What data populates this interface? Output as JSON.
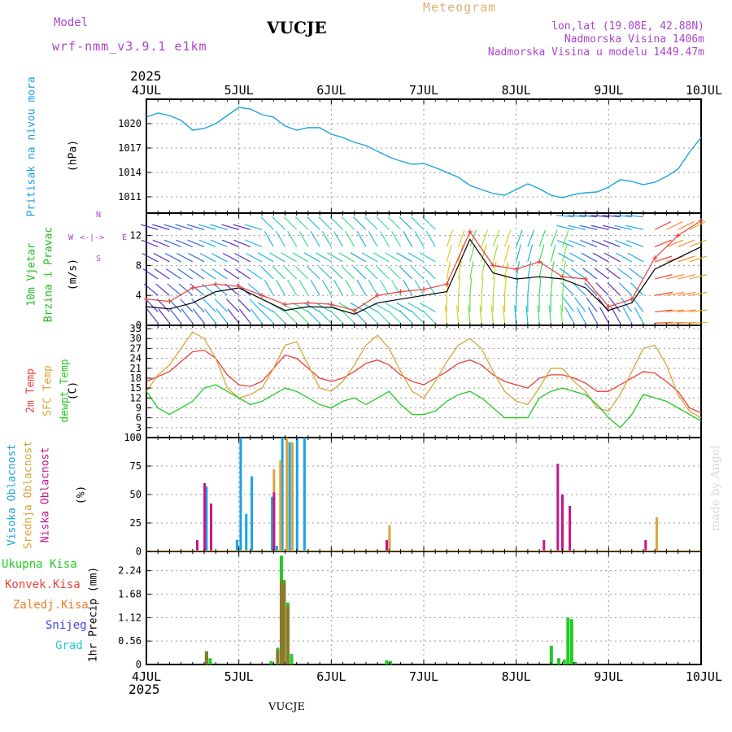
{
  "header": {
    "model_label": "Model",
    "model_name": "wrf-nmm_v3.9.1 e1km",
    "station": "VUCJE",
    "meteogram": "Meteogram",
    "coords": "lon,lat (19.08E, 42.88N)",
    "alt": "Nadmorska Visina 1406m",
    "alt_model": "Nadmorska Visina u modelu 1449.47m",
    "year_top": "2025",
    "year_bottom": "2025",
    "footer": "VUCJE",
    "watermark": "made by Angel"
  },
  "labels": {
    "pressure_title": "Pritisak na nivou mora",
    "pressure_unit": "(hPa)",
    "wind_title1": "10m Vjetar",
    "wind_title2": "Brzina i Pravac",
    "wind_unit": "(m/s)",
    "compass_n": "N",
    "compass_s": "S",
    "compass_w": "W",
    "compass_e": "E",
    "compass_arrows": "<-|->",
    "temp_2m": "2m Temp",
    "temp_sfc": "SFC Temp",
    "temp_dew": "dewpt Temp",
    "temp_unit": "(C)",
    "cloud_high": "Visoka Oblacnost",
    "cloud_mid": "Srednja Oblacnost",
    "cloud_low": "Niska Oblacnost",
    "cloud_unit": "(%)",
    "precip_total": "Ukupna Kisa",
    "precip_conv": "Konvek.Kisa",
    "precip_frozen": "Zaledj.Kisa",
    "precip_snow": "Snijeg",
    "precip_graupel": "Grad",
    "precip_axis": "1hr Precip (mm)"
  },
  "colors": {
    "pressure": "#1aa3e0",
    "wind_label": "#22bb22",
    "compass": "#aa44cc",
    "temp_2m": "#e8413a",
    "temp_sfc": "#d9a53a",
    "temp_dew": "#22cc22",
    "cloud_high": "#1aa3e0",
    "cloud_mid": "#d9a53a",
    "cloud_low": "#c8148c",
    "precip_total": "#22cc22",
    "precip_conv": "#e8413a",
    "precip_frozen": "#f07c2a",
    "precip_snow": "#4444dd",
    "precip_graupel": "#22cccc",
    "model": "#aa44cc",
    "meteogram": "#e0b070",
    "coords": "#aa44cc"
  },
  "chart_data": [
    {
      "type": "line",
      "panel": "pressure",
      "x_ticks": [
        "4JUL",
        "5JUL",
        "6JUL",
        "7JUL",
        "8JUL",
        "9JUL",
        "10JUL"
      ],
      "ylim": [
        1009,
        1023
      ],
      "yticks": [
        "1011",
        "1014",
        "1017",
        "1020"
      ],
      "x": [
        0,
        0.125,
        0.25,
        0.375,
        0.5,
        0.625,
        0.75,
        0.875,
        1,
        1.125,
        1.25,
        1.375,
        1.5,
        1.625,
        1.75,
        1.875,
        2,
        2.125,
        2.25,
        2.375,
        2.5,
        2.625,
        2.75,
        2.875,
        3,
        3.125,
        3.25,
        3.375,
        3.5,
        3.625,
        3.75,
        3.875,
        4,
        4.125,
        4.25,
        4.375,
        4.5,
        4.625,
        4.75,
        4.875,
        5,
        5.125,
        5.25,
        5.375,
        5.5,
        5.625,
        5.75,
        5.875,
        6
      ],
      "series": [
        {
          "values": [
            1020.8,
            1021.3,
            1021.0,
            1020.4,
            1019.2,
            1019.4,
            1020.0,
            1021.0,
            1022.0,
            1021.8,
            1021.1,
            1020.8,
            1019.7,
            1019.2,
            1019.5,
            1019.5,
            1018.7,
            1018.3,
            1017.7,
            1017.3,
            1016.6,
            1015.9,
            1015.4,
            1015.0,
            1015.1,
            1014.6,
            1014.0,
            1013.4,
            1012.4,
            1011.9,
            1011.4,
            1011.2,
            1011.9,
            1012.6,
            1012.0,
            1011.2,
            1010.9,
            1011.3,
            1011.5,
            1011.6,
            1012.2,
            1013.1,
            1012.9,
            1012.5,
            1012.8,
            1013.5,
            1014.4,
            1016.5,
            1018.3
          ]
        }
      ]
    },
    {
      "type": "line",
      "panel": "wind",
      "ylim": [
        0,
        15
      ],
      "yticks": [
        "0",
        "4",
        "8",
        "12"
      ],
      "x": [
        0,
        0.25,
        0.5,
        0.75,
        1,
        1.25,
        1.5,
        1.75,
        2,
        2.25,
        2.5,
        2.75,
        3,
        3.25,
        3.5,
        3.75,
        4,
        4.25,
        4.5,
        4.75,
        5,
        5.25,
        5.5,
        5.75,
        6
      ],
      "series": [
        {
          "values": [
            2.5,
            2.2,
            3.0,
            4.5,
            5.0,
            3.5,
            2.0,
            2.5,
            2.4,
            1.5,
            3.0,
            3.5,
            4.0,
            4.5,
            11.5,
            7.0,
            6.2,
            6.5,
            6.2,
            5.0,
            2.0,
            3.0,
            7.5,
            9.0,
            10.5
          ]
        },
        {
          "values": [
            3.5,
            3.2,
            5.0,
            5.5,
            5.2,
            4.0,
            2.8,
            3.0,
            2.8,
            2.0,
            4.0,
            4.5,
            4.8,
            5.5,
            12.5,
            8.0,
            7.5,
            8.5,
            6.5,
            6.2,
            2.5,
            3.5,
            9.0,
            12.0,
            14.0
          ]
        }
      ]
    },
    {
      "type": "line",
      "panel": "temperature",
      "ylim": [
        0,
        34
      ],
      "yticks": [
        "0",
        "3",
        "6",
        "9",
        "12",
        "15",
        "18",
        "21",
        "24",
        "27",
        "30",
        "33"
      ],
      "x": [
        0,
        0.125,
        0.25,
        0.375,
        0.5,
        0.625,
        0.75,
        0.875,
        1,
        1.125,
        1.25,
        1.375,
        1.5,
        1.625,
        1.75,
        1.875,
        2,
        2.125,
        2.25,
        2.375,
        2.5,
        2.625,
        2.75,
        2.875,
        3,
        3.125,
        3.25,
        3.375,
        3.5,
        3.625,
        3.75,
        3.875,
        4,
        4.125,
        4.25,
        4.375,
        4.5,
        4.625,
        4.75,
        4.875,
        5,
        5.125,
        5.25,
        5.375,
        5.5,
        5.625,
        5.75,
        5.875,
        6
      ],
      "series": [
        {
          "name": "2m Temp",
          "values": [
            17,
            18.5,
            20,
            23,
            26,
            26.5,
            24,
            19,
            16,
            15.5,
            17,
            21,
            25,
            24,
            21,
            18,
            17,
            18,
            20,
            22.5,
            23.5,
            22,
            19,
            17,
            16,
            18,
            20,
            22.5,
            23.5,
            22,
            19,
            17,
            16,
            15,
            18,
            19,
            19,
            18,
            16.5,
            14,
            14,
            16,
            18,
            20,
            19.5,
            17,
            14,
            9,
            7.5
          ]
        },
        {
          "name": "SFC Temp",
          "values": [
            14,
            19,
            22,
            27,
            32,
            30,
            24,
            15,
            12,
            13,
            15,
            21,
            28,
            29,
            22,
            15,
            14,
            17,
            22,
            28,
            31,
            27,
            20,
            14,
            12,
            17,
            23,
            28,
            30,
            27,
            20,
            14,
            11,
            10,
            15,
            21,
            21,
            17,
            14,
            9,
            8,
            13,
            20,
            27,
            28,
            22,
            13,
            8,
            6
          ]
        },
        {
          "name": "dewpt Temp",
          "values": [
            14,
            9,
            7,
            9,
            11,
            15,
            16,
            14,
            12,
            10,
            11,
            13,
            15,
            14,
            12,
            10,
            9,
            11,
            12,
            10,
            12,
            14,
            10,
            7,
            7,
            8,
            11,
            13,
            14,
            12,
            9,
            6,
            6,
            6,
            12,
            14,
            15,
            14,
            13,
            10,
            6,
            3,
            7,
            13,
            12,
            11,
            9,
            7,
            5
          ]
        }
      ]
    },
    {
      "type": "bar",
      "panel": "clouds",
      "ylim": [
        0,
        100
      ],
      "yticks": [
        "0",
        "25",
        "50",
        "75",
        "100"
      ],
      "series": [
        {
          "name": "Visoka Oblacnost",
          "x": [
            0.65,
            0.98,
            1.02,
            1.08,
            1.14,
            1.36,
            1.41,
            1.47,
            1.55,
            1.63,
            1.71,
            2.6
          ],
          "values": [
            57,
            10,
            100,
            33,
            66,
            48,
            5,
            100,
            96,
            100,
            100,
            10
          ]
        },
        {
          "name": "Srednja Oblacnost",
          "x": [
            1.38,
            1.45,
            1.52,
            1.58,
            2.63,
            5.52
          ],
          "values": [
            72,
            80,
            100,
            96,
            23,
            30
          ]
        },
        {
          "name": "Niska Oblacnost",
          "x": [
            0.55,
            0.63,
            0.7,
            1.38,
            2.6,
            4.3,
            4.45,
            4.5,
            4.58,
            5.4
          ],
          "values": [
            10,
            60,
            42,
            52,
            10,
            10,
            77,
            50,
            40,
            10
          ]
        }
      ]
    },
    {
      "type": "bar",
      "panel": "precipitation",
      "ylim": [
        0,
        2.7
      ],
      "yticks": [
        "0",
        "0.56",
        "1.12",
        "1.68",
        "2.24"
      ],
      "series": [
        {
          "name": "Ukupna Kisa",
          "x": [
            0.65,
            0.69,
            1.35,
            1.42,
            1.46,
            1.49,
            1.53,
            1.57,
            2.6,
            2.64,
            4.38,
            4.46,
            4.52,
            4.56,
            4.6,
            4.64
          ],
          "values": [
            0.32,
            0.15,
            0.08,
            0.4,
            2.6,
            2.02,
            1.48,
            0.25,
            0.1,
            0.08,
            0.45,
            0.15,
            0.12,
            1.12,
            1.08,
            0.06
          ]
        },
        {
          "name": "Konvek.Kisa",
          "x": [
            0.65,
            1.42,
            1.46,
            1.49,
            1.53
          ],
          "values": [
            0.3,
            0.35,
            2.0,
            1.95,
            1.4
          ]
        }
      ]
    }
  ]
}
